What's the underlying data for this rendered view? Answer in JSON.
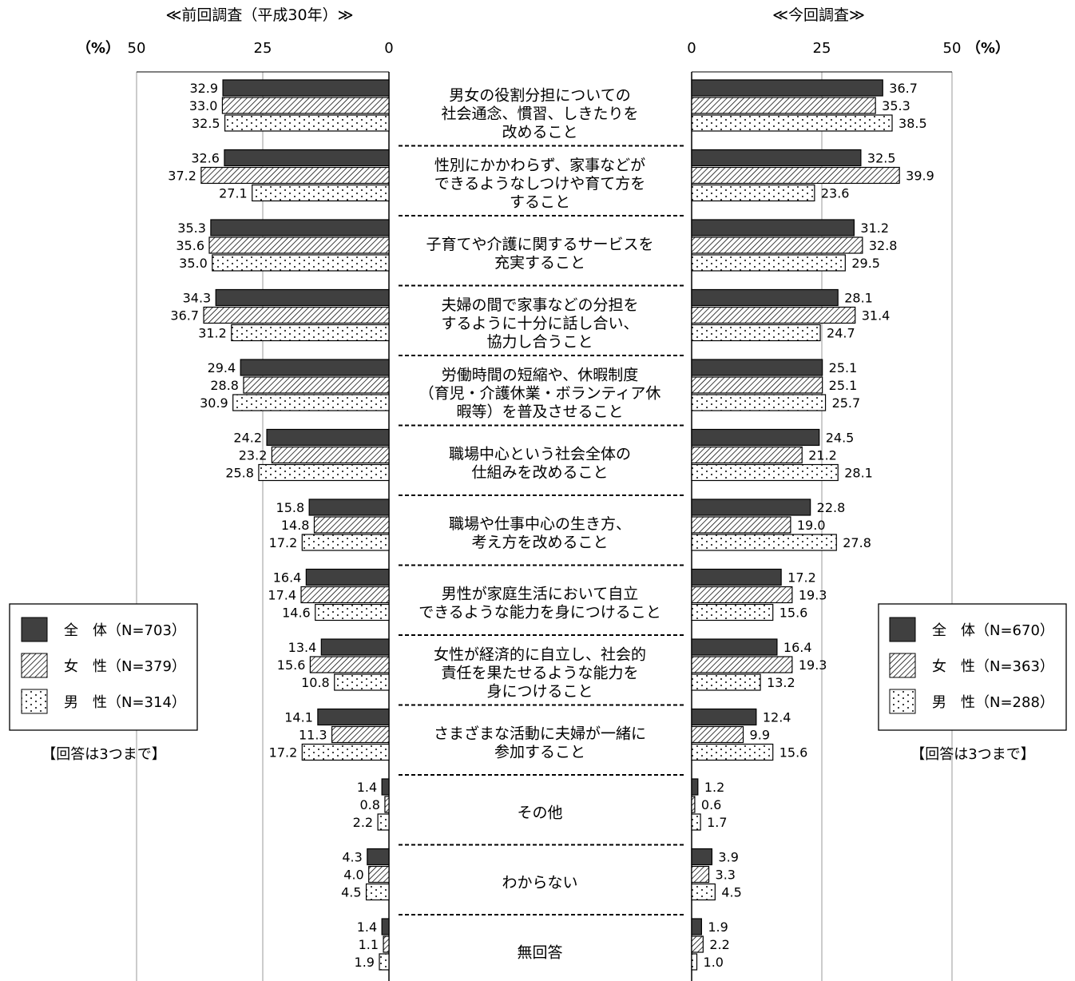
{
  "chart_data": {
    "type": "bar",
    "orientation": "horizontal",
    "left_title": "≪前回調査（平成30年）≫",
    "right_title": "≪今回調査≫",
    "unit": "（%）",
    "x_ticks": [
      "50",
      "25",
      "0"
    ],
    "x_ticks_right": [
      "0",
      "25",
      "50"
    ],
    "xlim": [
      0,
      50
    ],
    "grid": true,
    "categories": [
      [
        "男女の役割分担についての",
        "社会通念、慣習、しきたりを",
        "改めること"
      ],
      [
        "性別にかかわらず、家事などが",
        "できるようなしつけや育て方を",
        "すること"
      ],
      [
        "子育てや介護に関するサービスを",
        "充実すること"
      ],
      [
        "夫婦の間で家事などの分担を",
        "するように十分に話し合い、",
        "協力し合うこと"
      ],
      [
        "労働時間の短縮や、休暇制度",
        "（育児・介護休業・ボランティア休",
        "暇等）を普及させること"
      ],
      [
        "職場中心という社会全体の",
        "仕組みを改めること"
      ],
      [
        "職場や仕事中心の生き方、",
        "考え方を改めること"
      ],
      [
        "男性が家庭生活において自立",
        "できるような能力を身につけること"
      ],
      [
        "女性が経済的に自立し、社会的",
        "責任を果たせるような能力を",
        "身につけること"
      ],
      [
        "さまざまな活動に夫婦が一緒に",
        "参加すること"
      ],
      [
        "その他"
      ],
      [
        "わからない"
      ],
      [
        "無回答"
      ]
    ],
    "previous": {
      "legend_position": "left",
      "note": "【回答は3つまで】",
      "series": [
        {
          "name": "全　体（N=703）",
          "pattern": "solid",
          "color": "#404040",
          "values": [
            32.9,
            32.6,
            35.3,
            34.3,
            29.4,
            24.2,
            15.8,
            16.4,
            13.4,
            14.1,
            1.4,
            4.3,
            1.4
          ]
        },
        {
          "name": "女　性（N=379）",
          "pattern": "hatch",
          "values": [
            33.0,
            37.2,
            35.6,
            36.7,
            28.8,
            23.2,
            14.8,
            17.4,
            15.6,
            11.3,
            0.8,
            4.0,
            1.1
          ]
        },
        {
          "name": "男　性（N=314）",
          "pattern": "dots",
          "values": [
            32.5,
            27.1,
            35.0,
            31.2,
            30.9,
            25.8,
            17.2,
            14.6,
            10.8,
            17.2,
            2.2,
            4.5,
            1.9
          ]
        }
      ]
    },
    "current": {
      "legend_position": "right",
      "note": "【回答は3つまで】",
      "series": [
        {
          "name": "全　体（N=670）",
          "pattern": "solid",
          "color": "#404040",
          "values": [
            36.7,
            32.5,
            31.2,
            28.1,
            25.1,
            24.5,
            22.8,
            17.2,
            16.4,
            12.4,
            1.2,
            3.9,
            1.9
          ]
        },
        {
          "name": "女　性（N=363）",
          "pattern": "hatch",
          "values": [
            35.3,
            39.9,
            32.8,
            31.4,
            25.1,
            21.2,
            19.0,
            19.3,
            19.3,
            9.9,
            0.6,
            3.3,
            2.2
          ]
        },
        {
          "name": "男　性（N=288）",
          "pattern": "dots",
          "values": [
            38.5,
            23.6,
            29.5,
            24.7,
            25.7,
            28.1,
            27.8,
            15.6,
            13.2,
            15.6,
            1.7,
            4.5,
            1.0
          ]
        }
      ]
    }
  }
}
